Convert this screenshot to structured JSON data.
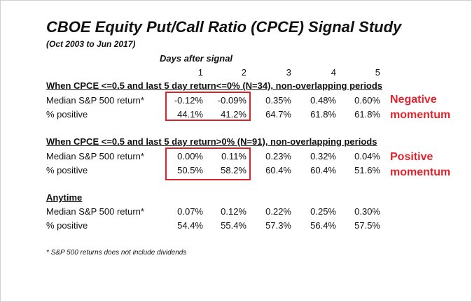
{
  "title": "CBOE Equity Put/Call Ratio (CPCE) Signal Study",
  "subtitle": "(Oct 2003 to Jun 2017)",
  "days_header": "Days after signal",
  "day_columns": [
    "1",
    "2",
    "3",
    "4",
    "5"
  ],
  "sections": [
    {
      "heading": "When CPCE <=0.5 and last 5 day return<=0% (N=34), non-overlapping periods",
      "rows": [
        {
          "label": "Median S&P 500 return*",
          "values": [
            "-0.12%",
            "-0.09%",
            "0.35%",
            "0.48%",
            "0.60%"
          ]
        },
        {
          "label": "% positive",
          "values": [
            "44.1%",
            "41.2%",
            "64.7%",
            "61.8%",
            "61.8%"
          ]
        }
      ],
      "callout": [
        "Negative",
        "momentum"
      ]
    },
    {
      "heading": "When CPCE <=0.5 and last 5 day return>0% (N=91), non-overlapping periods",
      "rows": [
        {
          "label": "Median S&P 500 return*",
          "values": [
            "0.00%",
            "0.11%",
            "0.23%",
            "0.32%",
            "0.04%"
          ]
        },
        {
          "label": "% positive",
          "values": [
            "50.5%",
            "58.2%",
            "60.4%",
            "60.4%",
            "51.6%"
          ]
        }
      ],
      "callout": [
        "Positive",
        "momentum"
      ]
    },
    {
      "heading": "Anytime",
      "rows": [
        {
          "label": "Median S&P 500 return*",
          "values": [
            "0.07%",
            "0.12%",
            "0.22%",
            "0.25%",
            "0.30%"
          ]
        },
        {
          "label": "% positive",
          "values": [
            "54.4%",
            "55.4%",
            "57.3%",
            "56.4%",
            "57.5%"
          ]
        }
      ]
    }
  ],
  "footnote": "* S&P 500 returns does not include dividends",
  "colors": {
    "highlight": "#d9232a",
    "callout_text": "#e3232c"
  }
}
